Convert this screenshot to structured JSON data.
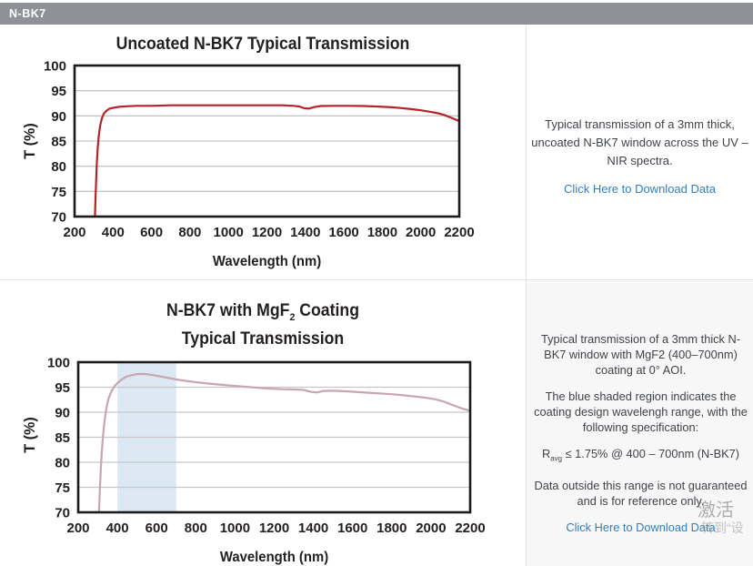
{
  "header": {
    "tab_label": "N-BK7"
  },
  "colors": {
    "header_bg": "#8e9195",
    "link_blue": "#2f7fc4",
    "chart1_line": "#b4232a",
    "chart2_line": "#c7a6ad",
    "shaded_region_blue": "#dce9f5",
    "panel2_bg": "#f7f7f7",
    "gridline": "#c6c6c6",
    "axis_border": "#1a1a1a"
  },
  "section1": {
    "caption": "Typical transmission of a 3mm thick, uncoated N-BK7 window across the UV – NIR spectra.",
    "download_link": "Click Here to Download Data"
  },
  "section2": {
    "para1": "Typical transmission of a 3mm thick N-BK7 window with MgF2 (400–700nm) coating at 0° AOI.",
    "para2": "The blue shaded region indicates the coating design wavelengh range, with the following specification:",
    "spec_parts": [
      "R",
      "avg",
      " ≤ 1.75% @ 400 – 700nm (N-BK7)"
    ],
    "para4": "Data outside this range is not guaranteed and is for reference only.",
    "download_link": "Click Here to Download Data"
  },
  "watermark": {
    "line1": "激活",
    "line2": "转到“设"
  },
  "chart_data": [
    {
      "type": "line",
      "name": "Uncoated N-BK7 transmission",
      "title": "Uncoated N-BK7 Typical Transmission",
      "xlabel": "Wavelength (nm)",
      "ylabel": "T (%)",
      "xlim": [
        200,
        2200
      ],
      "ylim": [
        70,
        100
      ],
      "xticks": [
        200,
        400,
        600,
        800,
        1000,
        1200,
        1400,
        1600,
        1800,
        2000,
        2200
      ],
      "yticks": [
        100,
        95,
        90,
        85,
        80,
        75,
        70
      ],
      "ygrid": [
        75,
        80,
        85,
        90,
        95
      ],
      "grid": "horizontal only",
      "legend": "none",
      "line_color": "#b4232a",
      "points": [
        [
          303,
          66
        ],
        [
          306,
          70
        ],
        [
          310,
          75
        ],
        [
          315,
          80
        ],
        [
          320,
          83.5
        ],
        [
          326,
          86
        ],
        [
          333,
          88
        ],
        [
          342,
          89.5
        ],
        [
          352,
          90.4
        ],
        [
          365,
          91.0
        ],
        [
          380,
          91.4
        ],
        [
          400,
          91.6
        ],
        [
          430,
          91.8
        ],
        [
          470,
          91.9
        ],
        [
          520,
          92.0
        ],
        [
          600,
          92.0
        ],
        [
          700,
          92.1
        ],
        [
          800,
          92.1
        ],
        [
          900,
          92.1
        ],
        [
          1000,
          92.1
        ],
        [
          1100,
          92.1
        ],
        [
          1200,
          92.1
        ],
        [
          1280,
          92.1
        ],
        [
          1340,
          92.0
        ],
        [
          1370,
          91.85
        ],
        [
          1395,
          91.5
        ],
        [
          1420,
          91.45
        ],
        [
          1445,
          91.75
        ],
        [
          1480,
          91.95
        ],
        [
          1550,
          92.0
        ],
        [
          1620,
          92.0
        ],
        [
          1700,
          91.95
        ],
        [
          1780,
          91.85
        ],
        [
          1850,
          91.7
        ],
        [
          1900,
          91.55
        ],
        [
          1950,
          91.35
        ],
        [
          2000,
          91.1
        ],
        [
          2040,
          90.85
        ],
        [
          2080,
          90.6
        ],
        [
          2120,
          90.2
        ],
        [
          2160,
          89.6
        ],
        [
          2185,
          89.2
        ],
        [
          2200,
          89.0
        ]
      ]
    },
    {
      "type": "line",
      "name": "N-BK7 with MgF2 coating transmission",
      "title": "N-BK7 with MgF₂ Coating Typical Transmission",
      "title_parts": [
        "N-BK7 with MgF",
        "2",
        " Coating"
      ],
      "title_line2": "Typical Transmission",
      "xlabel": "Wavelength (nm)",
      "ylabel": "T (%)",
      "xlim": [
        200,
        2200
      ],
      "ylim": [
        70,
        100
      ],
      "xticks": [
        200,
        400,
        600,
        800,
        1000,
        1200,
        1400,
        1600,
        1800,
        2000,
        2200
      ],
      "yticks": [
        100,
        95,
        90,
        85,
        80,
        75,
        70
      ],
      "ygrid": [
        75,
        80,
        85,
        90,
        95
      ],
      "grid": "horizontal only",
      "legend": "none",
      "shaded_region": [
        400,
        700
      ],
      "shaded_color": "#dce9f5",
      "line_color": "#c7a6ad",
      "points": [
        [
          303,
          66
        ],
        [
          306,
          70
        ],
        [
          310,
          74
        ],
        [
          315,
          78.5
        ],
        [
          320,
          82
        ],
        [
          327,
          85.5
        ],
        [
          335,
          88.5
        ],
        [
          345,
          91
        ],
        [
          355,
          92.8
        ],
        [
          370,
          94.2
        ],
        [
          385,
          95.2
        ],
        [
          400,
          95.8
        ],
        [
          420,
          96.5
        ],
        [
          445,
          97.1
        ],
        [
          470,
          97.4
        ],
        [
          500,
          97.6
        ],
        [
          530,
          97.65
        ],
        [
          560,
          97.55
        ],
        [
          590,
          97.35
        ],
        [
          620,
          97.15
        ],
        [
          660,
          96.85
        ],
        [
          700,
          96.55
        ],
        [
          750,
          96.25
        ],
        [
          800,
          96.0
        ],
        [
          870,
          95.7
        ],
        [
          940,
          95.45
        ],
        [
          1000,
          95.25
        ],
        [
          1080,
          95.0
        ],
        [
          1160,
          94.75
        ],
        [
          1240,
          94.6
        ],
        [
          1300,
          94.55
        ],
        [
          1350,
          94.45
        ],
        [
          1390,
          94.05
        ],
        [
          1420,
          93.95
        ],
        [
          1450,
          94.25
        ],
        [
          1500,
          94.3
        ],
        [
          1560,
          94.2
        ],
        [
          1640,
          94.0
        ],
        [
          1720,
          93.8
        ],
        [
          1800,
          93.6
        ],
        [
          1870,
          93.35
        ],
        [
          1930,
          93.1
        ],
        [
          1980,
          92.85
        ],
        [
          2020,
          92.6
        ],
        [
          2060,
          92.2
        ],
        [
          2100,
          91.6
        ],
        [
          2140,
          91.0
        ],
        [
          2170,
          90.6
        ],
        [
          2200,
          90.3
        ]
      ]
    }
  ]
}
